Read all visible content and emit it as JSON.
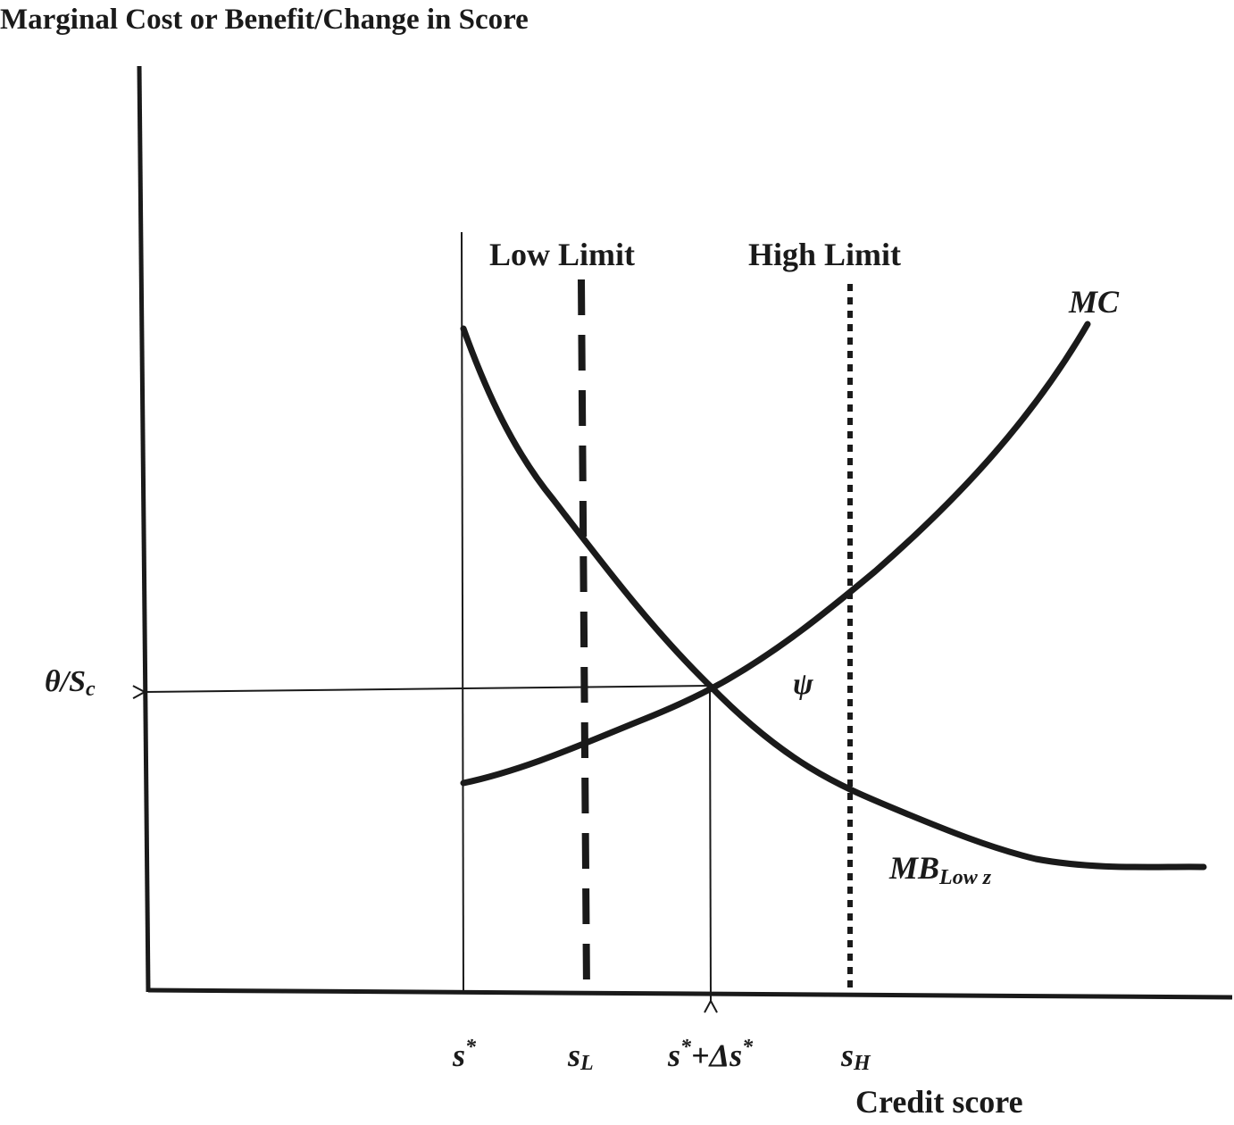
{
  "title": "Marginal Cost or Benefit/Change in Score",
  "x_axis_label": "Credit score",
  "y_tick_label": {
    "main": "θ/S",
    "sub": "c"
  },
  "limit_labels": {
    "low": "Low Limit",
    "high": "High Limit"
  },
  "curve_labels": {
    "mc": "MC",
    "mb": {
      "main": "MB",
      "sub": "Low z"
    },
    "psi": "ψ"
  },
  "x_ticks": {
    "s_star": {
      "main": "s",
      "sup": "*"
    },
    "s_low": {
      "main": "s",
      "sub": "L"
    },
    "s_shift": {
      "a": "s",
      "b": "+Δs",
      "sup1": "*",
      "sup2": "*"
    },
    "s_high": {
      "main": "s",
      "sub": "H"
    }
  },
  "colors": {
    "ink": "#1a1a1a",
    "background": "#ffffff"
  }
}
